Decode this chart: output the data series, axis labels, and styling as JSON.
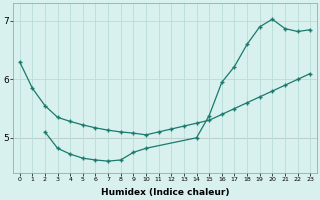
{
  "line1_x": [
    0,
    1,
    2,
    3,
    4,
    5,
    6,
    7,
    8,
    9,
    10,
    11,
    12,
    13,
    14,
    15,
    16,
    17,
    18,
    19,
    20,
    21,
    22,
    23
  ],
  "line1_y": [
    6.3,
    5.85,
    5.55,
    5.35,
    5.28,
    5.22,
    5.17,
    5.13,
    5.1,
    5.08,
    5.05,
    5.1,
    5.15,
    5.2,
    5.25,
    5.3,
    5.4,
    5.5,
    5.6,
    5.7,
    5.8,
    5.9,
    6.0,
    6.1
  ],
  "line2_x": [
    2,
    3,
    4,
    5,
    6,
    7,
    8,
    9,
    10,
    14,
    15,
    16,
    17,
    18,
    19,
    20,
    21,
    22,
    23
  ],
  "line2_y": [
    5.1,
    4.82,
    4.72,
    4.65,
    4.62,
    4.6,
    4.62,
    4.75,
    4.82,
    5.0,
    5.38,
    5.95,
    6.22,
    6.6,
    6.9,
    7.03,
    6.87,
    6.82,
    6.85
  ],
  "line_color": "#1a7a6e",
  "bg_color": "#d8f0ee",
  "grid_color": "#b8deda",
  "red_line_color": "#d88080",
  "xlabel": "Humidex (Indice chaleur)",
  "xlim": [
    -0.5,
    23.5
  ],
  "ylim": [
    4.4,
    7.3
  ],
  "yticks": [
    5,
    6,
    7
  ],
  "xticks": [
    0,
    1,
    2,
    3,
    4,
    5,
    6,
    7,
    8,
    9,
    10,
    11,
    12,
    13,
    14,
    15,
    16,
    17,
    18,
    19,
    20,
    21,
    22,
    23
  ]
}
